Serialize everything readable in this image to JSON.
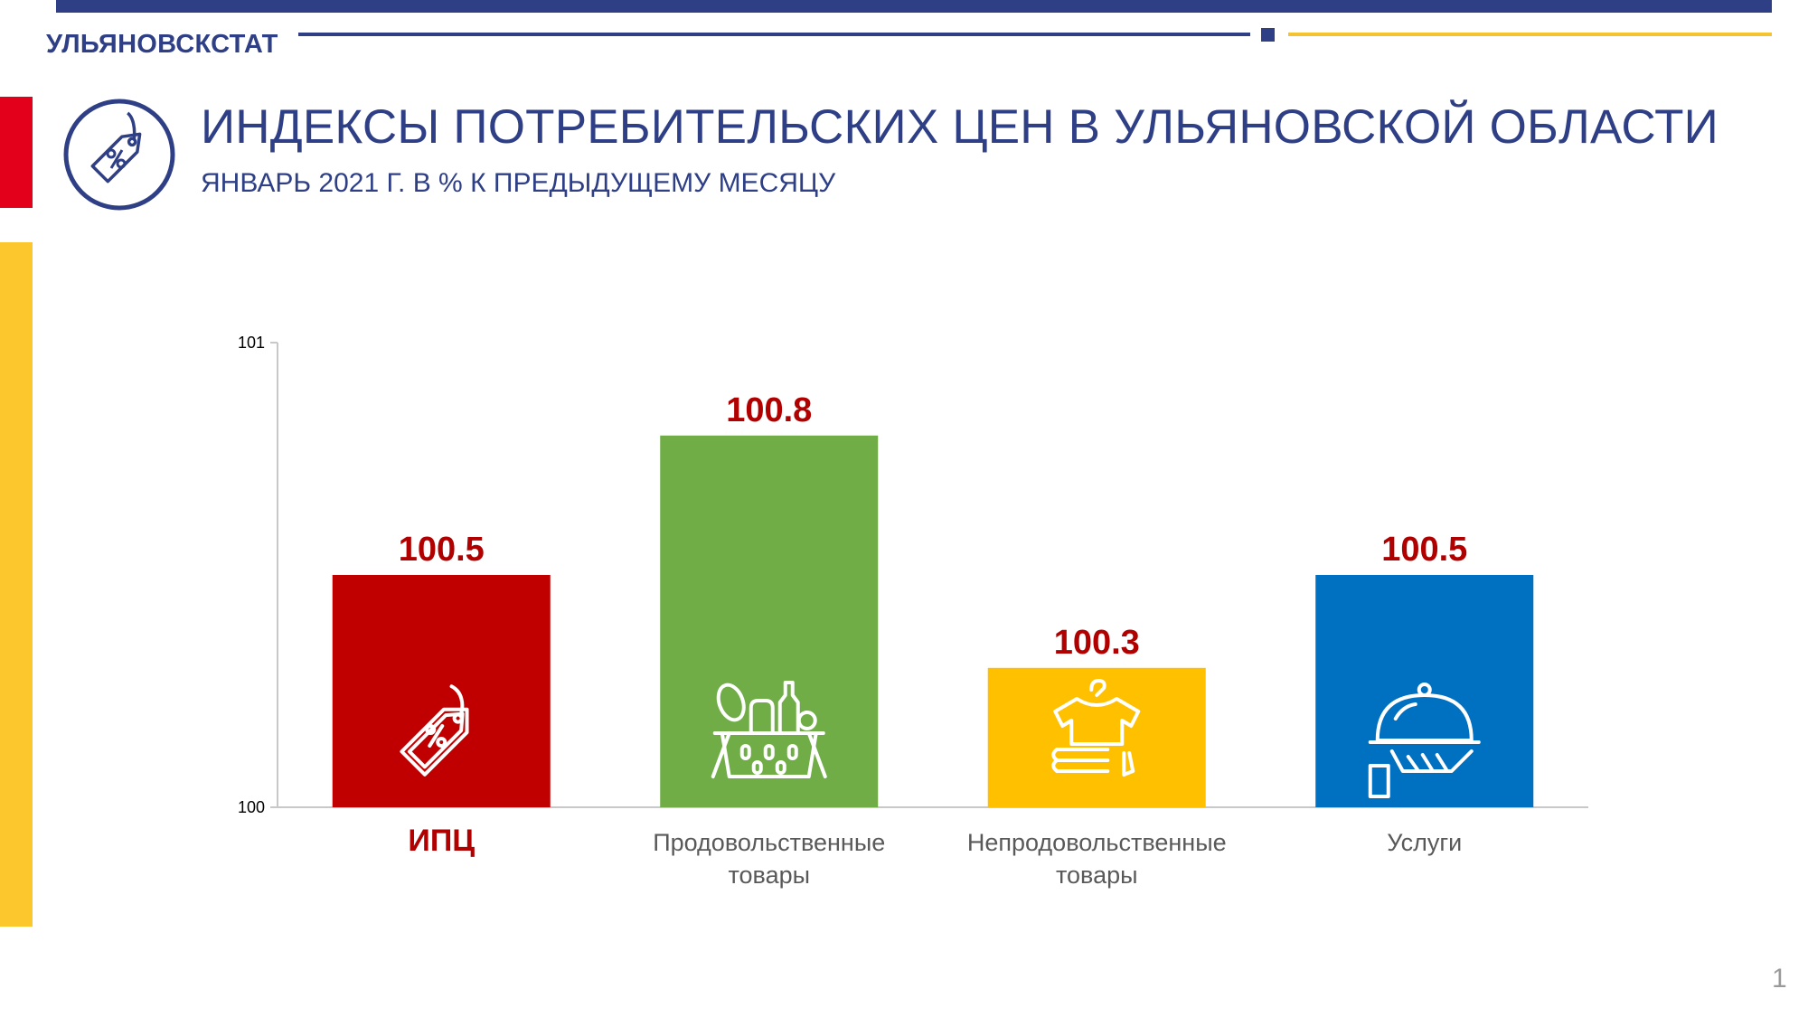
{
  "header": {
    "org_name": "УЛЬЯНОВСКСТАТ",
    "title": "ИНДЕКСЫ ПОТРЕБИТЕЛЬСКИХ ЦЕН В УЛЬЯНОВСКОЙ ОБЛАСТИ",
    "subtitle": "ЯНВАРЬ 2021 Г. В % К ПРЕДЫДУЩЕМУ МЕСЯЦУ"
  },
  "colors": {
    "brand_navy": "#2e3f86",
    "accent_red": "#e2001a",
    "accent_yellow": "#fcc62d",
    "value_label": "#b00000"
  },
  "chart_data": {
    "type": "bar",
    "categories": [
      "ИПЦ",
      "Продовольственные товары",
      "Непродовольственные товары",
      "Услуги"
    ],
    "category_lines": [
      [
        "ИПЦ"
      ],
      [
        "Продовольственные",
        "товары"
      ],
      [
        "Непродовольственные",
        "товары"
      ],
      [
        "Услуги"
      ]
    ],
    "values": [
      100.5,
      100.8,
      100.3,
      100.5
    ],
    "value_labels": [
      "100.5",
      "100.8",
      "100.3",
      "100.5"
    ],
    "bar_colors": [
      "#c00000",
      "#70ad47",
      "#ffc000",
      "#0070c0"
    ],
    "bar_icons": [
      "price-tag-icon",
      "grocery-basket-icon",
      "clothing-stack-icon",
      "serving-cloche-icon"
    ],
    "highlight_category": "ИПЦ",
    "ylim": [
      100,
      101
    ],
    "yticks": [
      "100",
      "101"
    ],
    "xlabel": "",
    "ylabel": "",
    "grid": false,
    "legend": "none"
  },
  "footer": {
    "page_number": "1"
  }
}
